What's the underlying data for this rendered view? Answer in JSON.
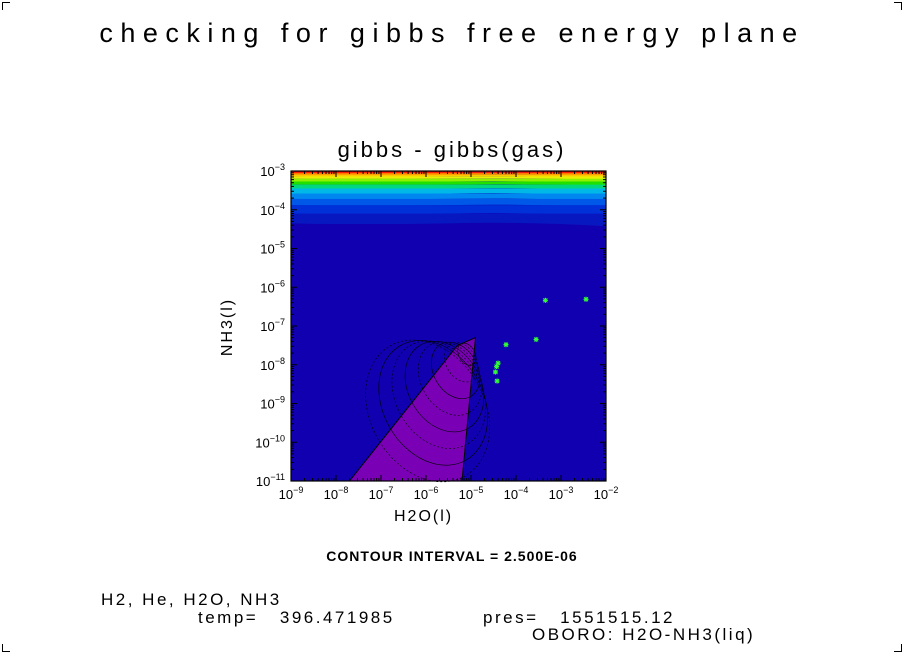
{
  "page": {
    "title": "checking for gibbs free energy plane",
    "contour_interval": "CONTOUR INTERVAL = 2.500E-06",
    "footer": {
      "species": "H2, He, H2O, NH3",
      "temp": "temp=   396.471985",
      "pres": "pres=   1551515.12",
      "case": "OBORO: H2O-NH3(liq)"
    }
  },
  "chart_data": {
    "type": "heatmap",
    "title": "gibbs - gibbs(gas)",
    "xlabel": "H2O(l)",
    "ylabel": "NH3(l)",
    "xscale": "log",
    "yscale": "log",
    "xlim": [
      1e-09,
      0.01
    ],
    "ylim": [
      1e-11,
      0.001
    ],
    "x_ticks": [
      -9,
      -8,
      -7,
      -6,
      -5,
      -4,
      -3,
      -2
    ],
    "y_ticks": [
      -11,
      -10,
      -9,
      -8,
      -7,
      -6,
      -5,
      -4,
      -3
    ],
    "background_color": "#1000b0",
    "region_color": "#7a00b5",
    "point_color": "#33ff33",
    "color_bands": [
      {
        "lo": -3.02,
        "hi": -3.0,
        "color": "#d80000"
      },
      {
        "lo": -3.05,
        "hi": -3.02,
        "color": "#ff2000"
      },
      {
        "lo": -3.09,
        "hi": -3.05,
        "color": "#ff7800"
      },
      {
        "lo": -3.14,
        "hi": -3.09,
        "color": "#ffc800"
      },
      {
        "lo": -3.2,
        "hi": -3.14,
        "color": "#e8f000"
      },
      {
        "lo": -3.27,
        "hi": -3.2,
        "color": "#90f000"
      },
      {
        "lo": -3.35,
        "hi": -3.27,
        "color": "#20e000"
      },
      {
        "lo": -3.45,
        "hi": -3.35,
        "color": "#00d880"
      },
      {
        "lo": -3.58,
        "hi": -3.45,
        "color": "#00b8e8"
      },
      {
        "lo": -3.72,
        "hi": -3.58,
        "color": "#0088f0"
      },
      {
        "lo": -3.88,
        "hi": -3.72,
        "color": "#0058e8"
      },
      {
        "lo": -4.1,
        "hi": -3.88,
        "color": "#0030d8"
      },
      {
        "lo": -4.35,
        "hi": -4.1,
        "color": "#0818c0"
      }
    ],
    "region": [
      [
        -7.7,
        -11
      ],
      [
        -5.3,
        -7.5
      ],
      [
        -4.9,
        -7.3
      ],
      [
        -5.2,
        -11
      ]
    ],
    "points": [
      {
        "x": 6e-05,
        "y": 3.3e-08
      },
      {
        "x": 4e-05,
        "y": 1.1e-08
      },
      {
        "x": 3.7e-05,
        "y": 9e-09
      },
      {
        "x": 3.5e-05,
        "y": 6.5e-09
      },
      {
        "x": 3.8e-05,
        "y": 3.8e-09
      },
      {
        "x": 0.00028,
        "y": 4.5e-08
      },
      {
        "x": 0.00045,
        "y": 4.6e-07
      },
      {
        "x": 0.0036,
        "y": 4.9e-07
      }
    ]
  }
}
